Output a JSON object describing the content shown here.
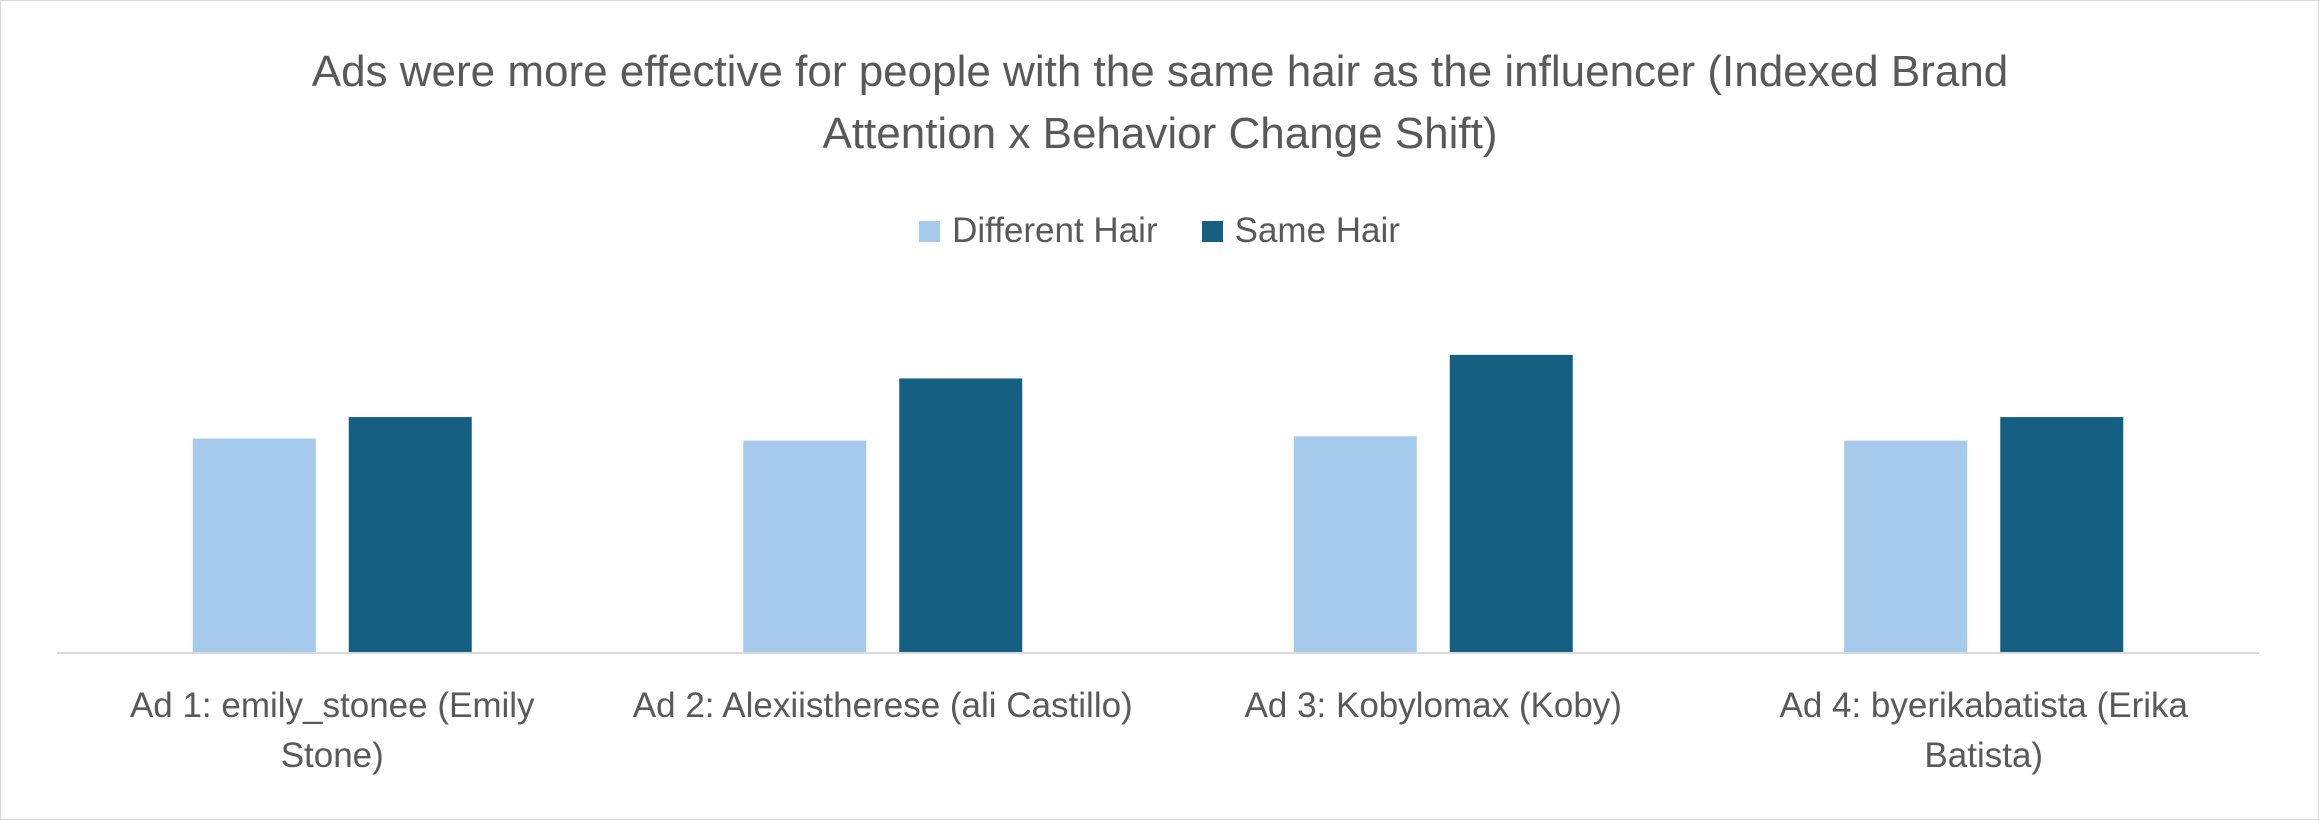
{
  "chart_data": {
    "type": "bar",
    "title": "Ads were more effective for people with the same hair as the influencer (Indexed Brand Attention x Behavior Change Shift)",
    "categories": [
      "Ad 1: emily_stonee (Emily Stone)",
      "Ad 2: Alexiistherese (ali Castillo)",
      "Ad 3: Kobylomax (Koby)",
      "Ad 4: byerikabatista (Erika Batista)"
    ],
    "series": [
      {
        "name": "Different Hair",
        "color": "#a6caec",
        "values": [
          100,
          99,
          101,
          99
        ]
      },
      {
        "name": "Same Hair",
        "color": "#156082",
        "values": [
          110,
          128,
          139,
          110
        ]
      }
    ],
    "ylim": [
      0,
      200
    ],
    "legend": "top"
  }
}
